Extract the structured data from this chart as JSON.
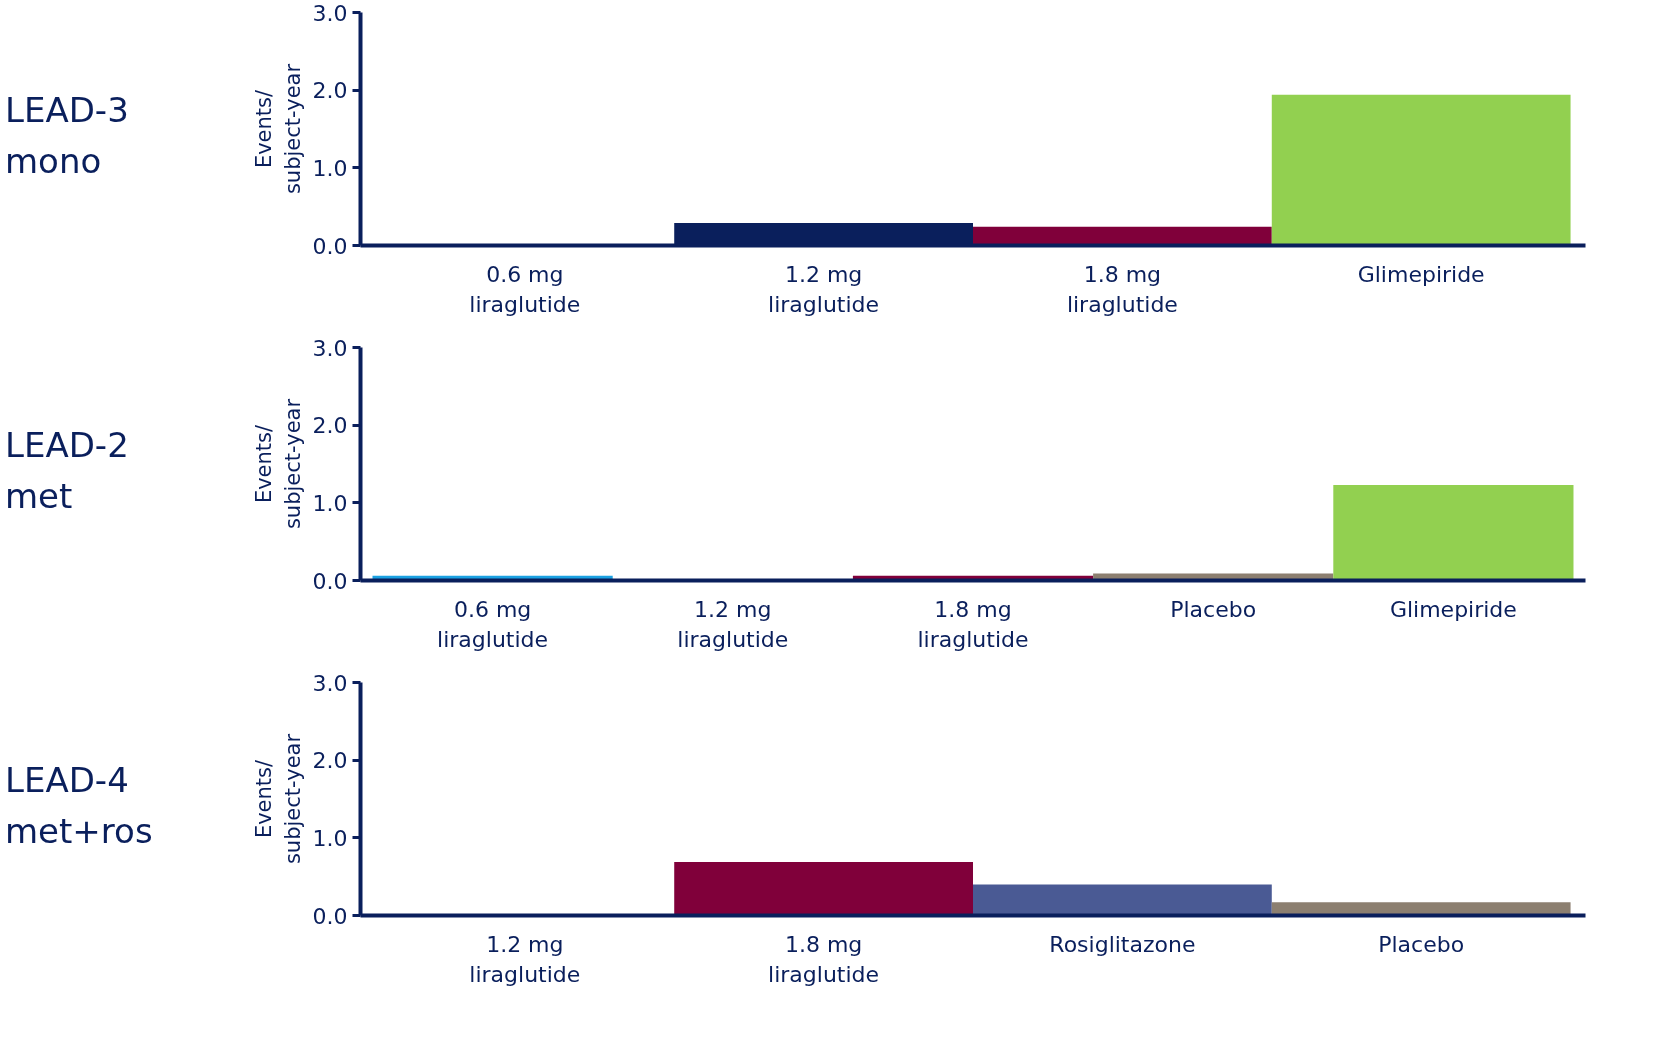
{
  "chart_data": [
    {
      "type": "bar",
      "title": "LEAD-3\nmono",
      "ylabel": "Events/\nsubject-year",
      "categories": [
        "0.6 mg\nliraglutide",
        "1.2 mg\nliraglutide",
        "1.8 mg\nliraglutide",
        "Glimepiride"
      ],
      "values": [
        0,
        0.29,
        0.24,
        1.94
      ],
      "colors": [
        "#1ba1e2",
        "#0a1f5c",
        "#80003a",
        "#92d050"
      ],
      "ylim": [
        0,
        3
      ],
      "yticks": [
        {
          "value": 0,
          "label": "0.0"
        },
        {
          "value": 1,
          "label": "1.0"
        },
        {
          "value": 2,
          "label": "2.0"
        },
        {
          "value": 3,
          "label": "3.0"
        }
      ],
      "grid": false
    },
    {
      "type": "bar",
      "title": "LEAD-2\nmet",
      "ylabel": "Events/\nsubject-year",
      "categories": [
        "0.6 mg\nliraglutide",
        "1.2 mg\nliraglutide",
        "1.8 mg\nliraglutide",
        "Placebo",
        "Glimepiride"
      ],
      "values": [
        0.06,
        0,
        0.06,
        0.09,
        1.23
      ],
      "colors": [
        "#1ba1e2",
        "#0a1f5c",
        "#80003a",
        "#8c7f70",
        "#92d050"
      ],
      "ylim": [
        0,
        3
      ],
      "yticks": [
        {
          "value": 0,
          "label": "0.0"
        },
        {
          "value": 1,
          "label": "1.0"
        },
        {
          "value": 2,
          "label": "2.0"
        },
        {
          "value": 3,
          "label": "3.0"
        }
      ],
      "grid": false
    },
    {
      "type": "bar",
      "title": "LEAD-4\nmet+ros",
      "ylabel": "Events/\nsubject-year",
      "categories": [
        "1.2 mg\nliraglutide",
        "1.8 mg\nliraglutide",
        "Rosiglitazone",
        "Placebo"
      ],
      "values": [
        0,
        0.69,
        0.4,
        0.17
      ],
      "colors": [
        "#0a1f5c",
        "#80003a",
        "#4a5a94",
        "#8c7f70"
      ],
      "ylim": [
        0,
        3
      ],
      "yticks": [
        {
          "value": 0,
          "label": "0.0"
        },
        {
          "value": 1,
          "label": "1.0"
        },
        {
          "value": 2,
          "label": "2.0"
        },
        {
          "value": 3,
          "label": "3.0"
        }
      ],
      "grid": false
    }
  ]
}
